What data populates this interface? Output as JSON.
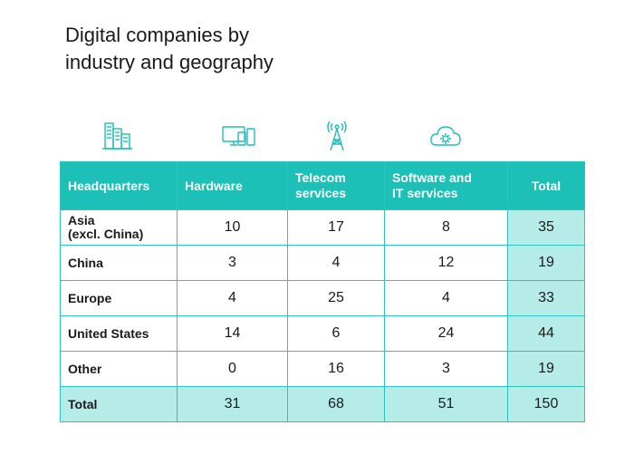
{
  "title_lines": [
    "Digital companies by",
    "industry and geography"
  ],
  "colors": {
    "header": "#1cc0b7",
    "total_fill": "#b6ece8",
    "border": "#2cc4bc",
    "icon": "#1cc0b7"
  },
  "icons": [
    "office-buildings-icon",
    "devices-icon",
    "signal-tower-icon",
    "cloud-gear-icon"
  ],
  "chart_data": {
    "type": "table",
    "title": "Digital companies by industry and geography",
    "columns": [
      "Headquarters",
      "Hardware",
      "Telecom services",
      "Software and IT services",
      "Total"
    ],
    "header_lines": [
      [
        "Headquarters"
      ],
      [
        "Hardware"
      ],
      [
        "Telecom",
        "services"
      ],
      [
        "Software and",
        "IT services"
      ],
      [
        "Total"
      ]
    ],
    "rows": [
      {
        "label_lines": [
          "Asia",
          "(excl. China)"
        ],
        "values": [
          "10",
          "17",
          "8",
          "35"
        ]
      },
      {
        "label_lines": [
          "China"
        ],
        "values": [
          "3",
          "4",
          "12",
          "19"
        ]
      },
      {
        "label_lines": [
          "Europe"
        ],
        "values": [
          "4",
          "25",
          "4",
          "33"
        ]
      },
      {
        "label_lines": [
          "United States"
        ],
        "values": [
          "14",
          "6",
          "24",
          "44"
        ]
      },
      {
        "label_lines": [
          "Other"
        ],
        "values": [
          "0",
          "16",
          "3",
          "19"
        ]
      },
      {
        "label_lines": [
          "Total"
        ],
        "values": [
          "31",
          "68",
          "51",
          "150"
        ]
      }
    ]
  }
}
